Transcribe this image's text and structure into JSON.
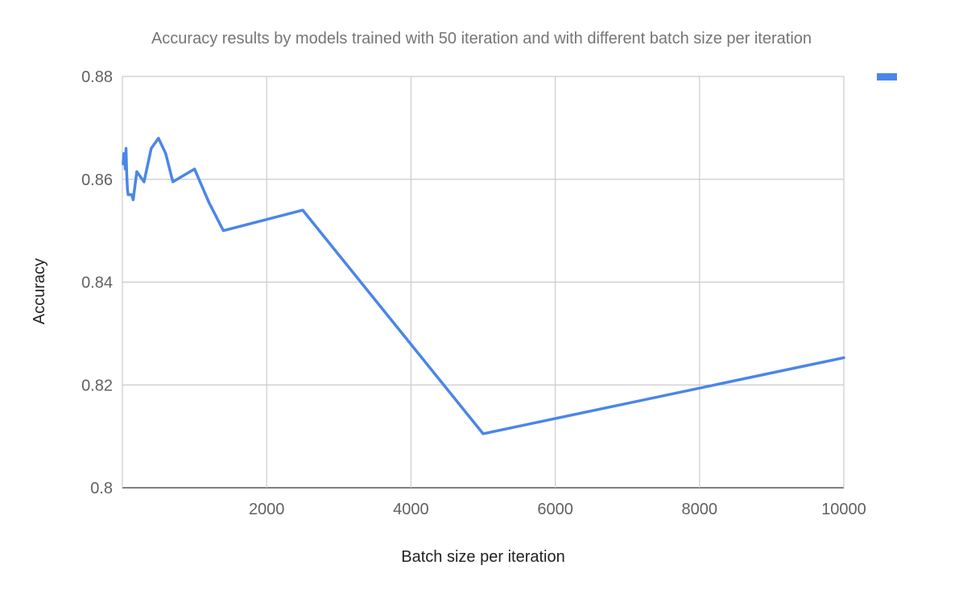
{
  "chart_data": {
    "type": "line",
    "title": "Accuracy results by models trained with 50 iteration and with different batch size per iteration",
    "xlabel": "Batch size per iteration",
    "ylabel": "Accuracy",
    "xlim": [
      0,
      10000
    ],
    "ylim": [
      0.8,
      0.88
    ],
    "x_ticks": [
      2000,
      4000,
      6000,
      8000,
      10000
    ],
    "x_tick_labels": [
      "2000",
      "4000",
      "6000",
      "8000",
      "10000"
    ],
    "y_ticks": [
      0.8,
      0.82,
      0.84,
      0.86,
      0.88
    ],
    "y_tick_labels": [
      "0.8",
      "0.82",
      "0.84",
      "0.86",
      "0.88"
    ],
    "grid": true,
    "legend_position": "right",
    "series": [
      {
        "color": "#4a86e8",
        "x": [
          10,
          20,
          30,
          40,
          50,
          60,
          70,
          80,
          90,
          100,
          128,
          150,
          200,
          250,
          300,
          400,
          500,
          600,
          700,
          1000,
          1200,
          1400,
          2500,
          5000,
          10000
        ],
        "y": [
          0.863,
          0.865,
          0.864,
          0.862,
          0.866,
          0.861,
          0.858,
          0.857,
          0.857,
          0.857,
          0.857,
          0.856,
          0.8615,
          0.8605,
          0.8595,
          0.866,
          0.868,
          0.865,
          0.8595,
          0.862,
          0.8555,
          0.85,
          0.854,
          0.8105,
          0.8253
        ]
      }
    ]
  }
}
